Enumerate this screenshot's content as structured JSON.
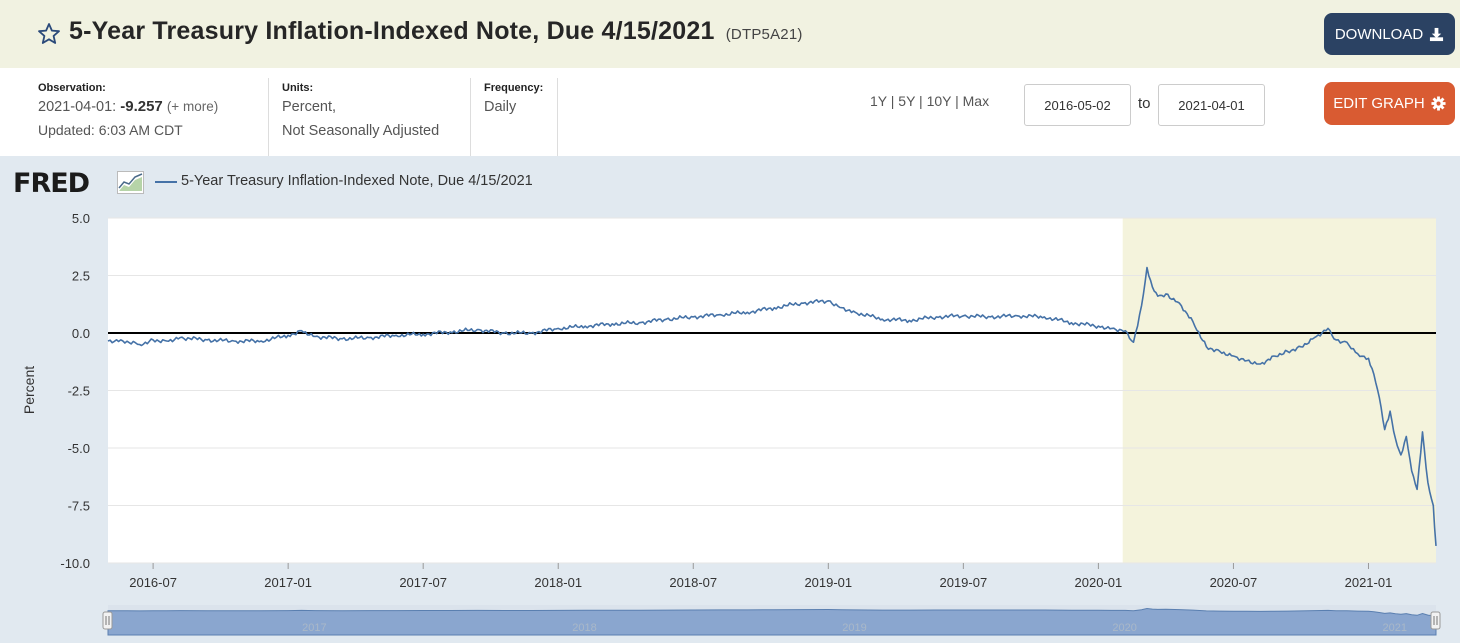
{
  "header": {
    "title": "5-Year Treasury Inflation-Indexed Note, Due 4/15/2021",
    "series_id": "(DTP5A21)",
    "download_label": "DOWNLOAD",
    "edit_graph_label": "EDIT GRAPH"
  },
  "observation": {
    "label": "Observation:",
    "date": "2021-04-01:",
    "value": "-9.257",
    "more": "(+ more)",
    "updated": "Updated: 6:03 AM CDT"
  },
  "units": {
    "label": "Units:",
    "line1": "Percent,",
    "line2": "Not Seasonally Adjusted"
  },
  "frequency": {
    "label": "Frequency:",
    "value": "Daily"
  },
  "ranges": {
    "text": "1Y | 5Y | 10Y | Max"
  },
  "dates": {
    "from": "2016-05-02",
    "to_label": "to",
    "to": "2021-04-01"
  },
  "brand": {
    "logo": "FRED"
  },
  "chart_data": {
    "type": "line",
    "legend": "5-Year Treasury Inflation-Indexed Note, Due 4/15/2021",
    "ylabel": "Percent",
    "ylim": [
      -10.0,
      5.0
    ],
    "yticks": [
      5.0,
      2.5,
      0.0,
      -2.5,
      -5.0,
      -7.5,
      -10.0
    ],
    "ytick_labels": [
      "5.0",
      "2.5",
      "0.0",
      "-2.5",
      "-5.0",
      "-7.5",
      "-10.0"
    ],
    "xlim": [
      2016.333,
      2021.25
    ],
    "xticks": [
      2016.5,
      2017.0,
      2017.5,
      2018.0,
      2018.5,
      2019.0,
      2019.5,
      2020.0,
      2020.5,
      2021.0
    ],
    "xtick_labels": [
      "2016-07",
      "2017-01",
      "2017-07",
      "2018-01",
      "2018-07",
      "2019-01",
      "2019-07",
      "2020-01",
      "2020-07",
      "2021-01"
    ],
    "recession": {
      "start": 2020.09,
      "end": 2021.25,
      "color": "#f4f3dc"
    },
    "zero_line": 0,
    "series": [
      {
        "name": "DTP5A21",
        "color": "#4572a7",
        "x": [
          2016.333,
          2016.38,
          2016.45,
          2016.5,
          2016.55,
          2016.6,
          2016.7,
          2016.8,
          2016.9,
          2017.0,
          2017.05,
          2017.1,
          2017.2,
          2017.3,
          2017.4,
          2017.5,
          2017.6,
          2017.7,
          2017.8,
          2017.9,
          2018.0,
          2018.1,
          2018.2,
          2018.3,
          2018.4,
          2018.5,
          2018.6,
          2018.7,
          2018.8,
          2018.9,
          2019.0,
          2019.05,
          2019.1,
          2019.2,
          2019.3,
          2019.4,
          2019.5,
          2019.6,
          2019.7,
          2019.8,
          2019.9,
          2020.0,
          2020.05,
          2020.1,
          2020.13,
          2020.16,
          2020.18,
          2020.2,
          2020.22,
          2020.25,
          2020.3,
          2020.35,
          2020.4,
          2020.45,
          2020.5,
          2020.55,
          2020.6,
          2020.65,
          2020.7,
          2020.75,
          2020.8,
          2020.85,
          2020.88,
          2020.92,
          2020.96,
          2021.0,
          2021.02,
          2021.04,
          2021.06,
          2021.08,
          2021.1,
          2021.12,
          2021.14,
          2021.16,
          2021.18,
          2021.2,
          2021.22,
          2021.24,
          2021.25
        ],
        "values": [
          -0.35,
          -0.3,
          -0.5,
          -0.3,
          -0.35,
          -0.2,
          -0.3,
          -0.35,
          -0.35,
          -0.1,
          0.1,
          -0.15,
          -0.25,
          -0.2,
          -0.1,
          -0.05,
          0.05,
          0.15,
          0.0,
          0.0,
          0.2,
          0.3,
          0.4,
          0.45,
          0.6,
          0.7,
          0.8,
          0.9,
          1.1,
          1.3,
          1.4,
          1.1,
          0.9,
          0.6,
          0.55,
          0.7,
          0.75,
          0.7,
          0.75,
          0.7,
          0.45,
          0.3,
          0.2,
          0.1,
          -0.4,
          1.2,
          2.85,
          2.0,
          1.6,
          1.7,
          1.3,
          0.5,
          -0.6,
          -0.8,
          -1.0,
          -1.2,
          -1.35,
          -1.0,
          -0.8,
          -0.6,
          -0.2,
          0.2,
          -0.3,
          -0.4,
          -0.9,
          -1.1,
          -1.8,
          -2.8,
          -4.2,
          -3.4,
          -4.6,
          -5.3,
          -4.5,
          -6.0,
          -6.8,
          -4.3,
          -6.5,
          -7.5,
          -9.257
        ]
      }
    ]
  }
}
